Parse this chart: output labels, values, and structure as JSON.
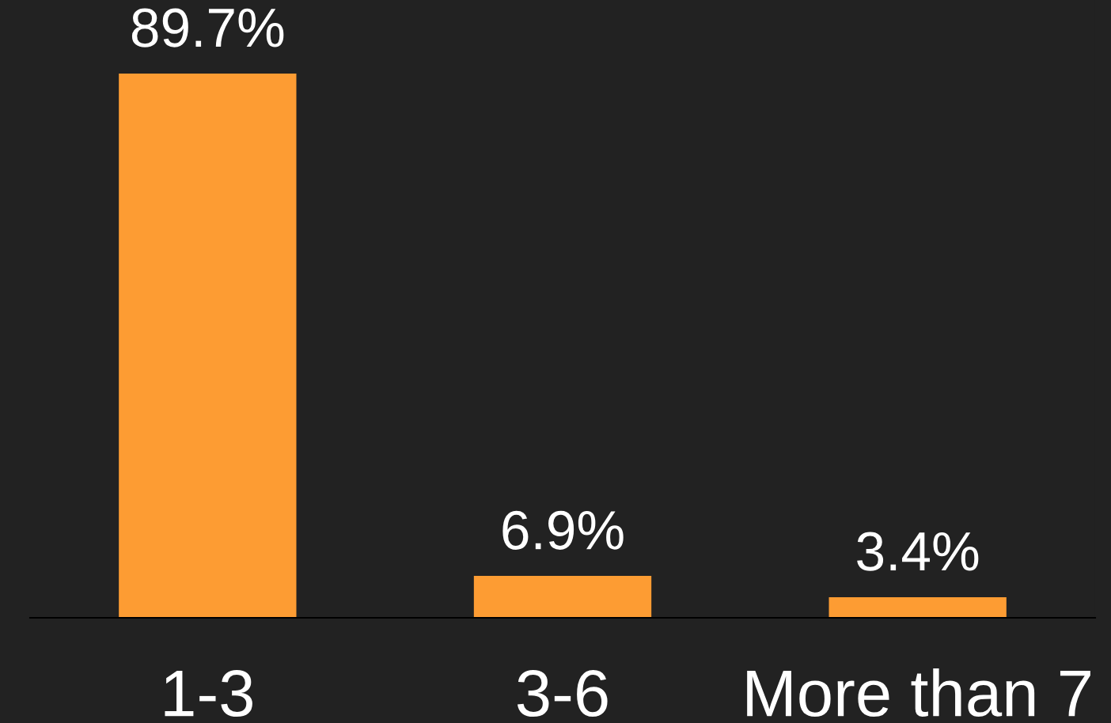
{
  "chart_data": {
    "type": "bar",
    "categories": [
      "1-3",
      "3-6",
      "More than 7"
    ],
    "values": [
      89.7,
      6.9,
      3.4
    ],
    "color": "#fd9c33",
    "value_labels": [
      "89.7%",
      "6.9%",
      "3.4%"
    ],
    "grid": false,
    "legend": false
  }
}
